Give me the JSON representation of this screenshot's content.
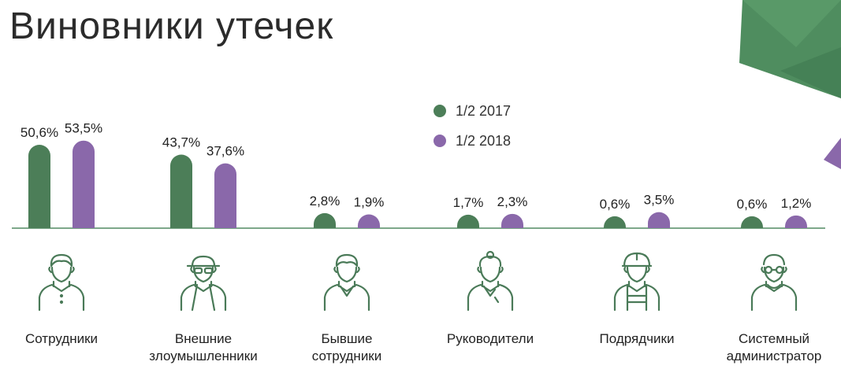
{
  "title": "Виновники утечек",
  "colors": {
    "green": "#4c7e58",
    "purple": "#8a68aa",
    "axis": "#7da88a",
    "icon": "#4a7a58"
  },
  "legend": [
    {
      "label": "1/2 2017",
      "color": "#4c7e58"
    },
    {
      "label": "1/2 2018",
      "color": "#8a68aa"
    }
  ],
  "chart_data": {
    "type": "bar",
    "title": "Виновники утечек",
    "categories": [
      "Сотрудники",
      "Внешние\nзлоумышленники",
      "Бывшие\nсотрудники",
      "Руководители",
      "Подрядчики",
      "Системный\nадминистратор"
    ],
    "series": [
      {
        "name": "1/2 2017",
        "values": [
          50.6,
          43.7,
          2.8,
          1.7,
          0.6,
          0.6
        ],
        "labels": [
          "50,6%",
          "43,7%",
          "2,8%",
          "1,7%",
          "0,6%",
          "0,6%"
        ]
      },
      {
        "name": "1/2 2018",
        "values": [
          53.5,
          37.6,
          1.9,
          2.3,
          3.5,
          1.2
        ],
        "labels": [
          "53,5%",
          "37,6%",
          "1,9%",
          "2,3%",
          "3,5%",
          "1,2%"
        ]
      }
    ],
    "icons": [
      "employee-icon",
      "hacker-icon",
      "former-employee-icon",
      "manager-icon",
      "contractor-icon",
      "sysadmin-icon"
    ],
    "ylim": [
      0,
      55
    ],
    "grid": false,
    "legend_position": "top-center"
  }
}
